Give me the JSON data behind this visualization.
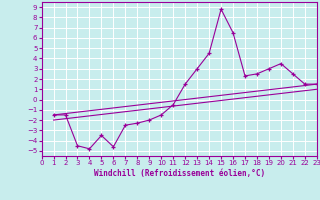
{
  "xlabel": "Windchill (Refroidissement éolien,°C)",
  "background_color": "#c8eded",
  "grid_color": "#aadddd",
  "line_color": "#990099",
  "xlim": [
    0,
    23
  ],
  "ylim": [
    -5.5,
    9.5
  ],
  "xticks": [
    0,
    1,
    2,
    3,
    4,
    5,
    6,
    7,
    8,
    9,
    10,
    11,
    12,
    13,
    14,
    15,
    16,
    17,
    18,
    19,
    20,
    21,
    22,
    23
  ],
  "yticks": [
    -5,
    -4,
    -3,
    -2,
    -1,
    0,
    1,
    2,
    3,
    4,
    5,
    6,
    7,
    8,
    9
  ],
  "main_x": [
    1,
    2,
    3,
    4,
    5,
    6,
    7,
    8,
    9,
    10,
    11,
    12,
    13,
    14,
    15,
    16,
    17,
    18,
    19,
    20,
    21,
    22,
    23
  ],
  "main_y": [
    -1.5,
    -1.5,
    -4.5,
    -4.8,
    -3.5,
    -4.6,
    -2.5,
    -2.3,
    -2.0,
    -1.5,
    -0.5,
    1.5,
    3.0,
    4.5,
    8.8,
    6.5,
    2.3,
    2.5,
    3.0,
    3.5,
    2.5,
    1.5,
    1.5
  ],
  "line2_x": [
    1,
    23
  ],
  "line2_y": [
    -1.5,
    1.5
  ],
  "line3_x": [
    1,
    23
  ],
  "line3_y": [
    -2.0,
    1.0
  ]
}
